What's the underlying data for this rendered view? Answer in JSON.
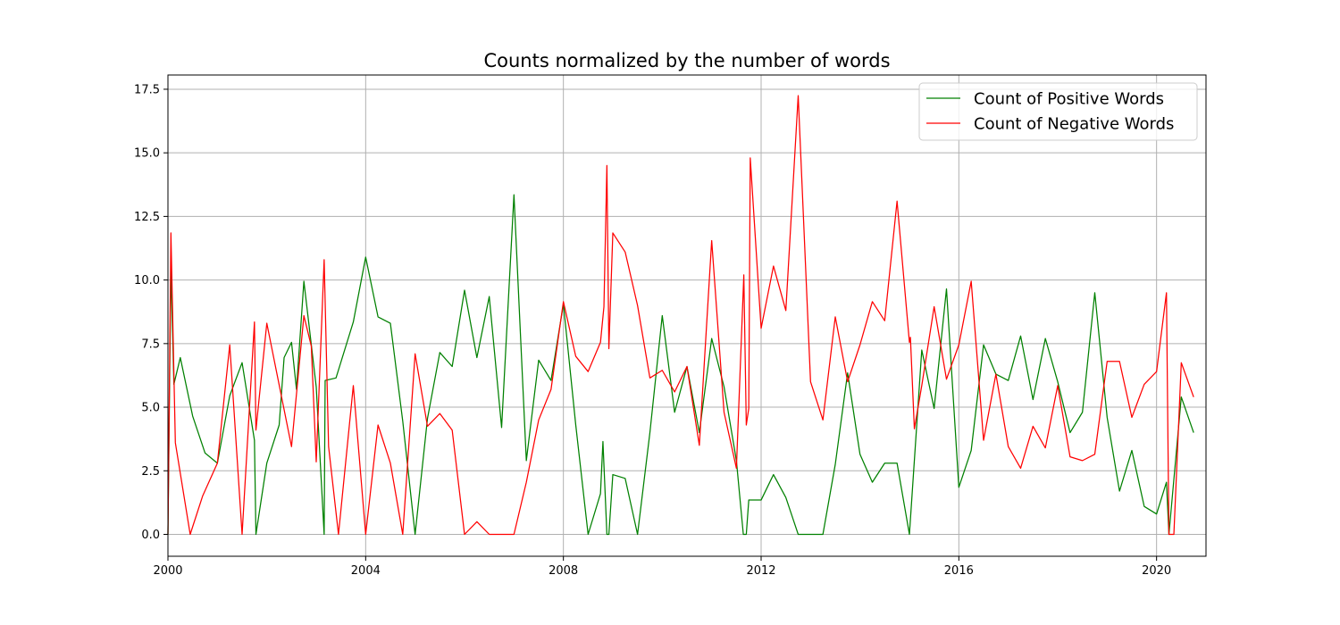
{
  "chart_data": {
    "type": "line",
    "title": "Counts normalized by the number of words",
    "xlabel": "",
    "ylabel": "",
    "xlim": [
      2000.0,
      2021.0
    ],
    "ylim": [
      -0.86,
      18.06
    ],
    "x_ticks": [
      2000,
      2004,
      2008,
      2012,
      2016,
      2020
    ],
    "x_tick_labels": [
      "2000",
      "2004",
      "2008",
      "2012",
      "2016",
      "2020"
    ],
    "y_ticks": [
      0.0,
      2.5,
      5.0,
      7.5,
      10.0,
      12.5,
      15.0,
      17.5
    ],
    "y_tick_labels": [
      "0.0",
      "2.5",
      "5.0",
      "7.5",
      "10.0",
      "12.5",
      "15.0",
      "17.5"
    ],
    "grid": true,
    "legend": "top-right",
    "series": [
      {
        "name": "Count of Positive Words",
        "color": "#008000",
        "points": [
          [
            2000.0,
            0.0
          ],
          [
            2000.06,
            10.55
          ],
          [
            2000.12,
            5.9
          ],
          [
            2000.25,
            6.95
          ],
          [
            2000.5,
            4.65
          ],
          [
            2000.75,
            3.2
          ],
          [
            2001.0,
            2.8
          ],
          [
            2001.25,
            5.45
          ],
          [
            2001.5,
            6.75
          ],
          [
            2001.75,
            3.7
          ],
          [
            2001.78,
            0.0
          ],
          [
            2002.0,
            2.8
          ],
          [
            2002.25,
            4.3
          ],
          [
            2002.35,
            6.95
          ],
          [
            2002.5,
            7.55
          ],
          [
            2002.6,
            5.7
          ],
          [
            2002.75,
            9.95
          ],
          [
            2003.0,
            5.8
          ],
          [
            2003.16,
            0.0
          ],
          [
            2003.18,
            6.05
          ],
          [
            2003.4,
            6.15
          ],
          [
            2003.75,
            8.35
          ],
          [
            2004.0,
            10.9
          ],
          [
            2004.25,
            8.55
          ],
          [
            2004.5,
            8.3
          ],
          [
            2004.75,
            4.45
          ],
          [
            2005.0,
            0.0
          ],
          [
            2005.25,
            4.55
          ],
          [
            2005.5,
            7.15
          ],
          [
            2005.75,
            6.6
          ],
          [
            2006.0,
            9.6
          ],
          [
            2006.25,
            6.95
          ],
          [
            2006.5,
            9.35
          ],
          [
            2006.75,
            4.2
          ],
          [
            2007.0,
            13.35
          ],
          [
            2007.25,
            2.9
          ],
          [
            2007.5,
            6.85
          ],
          [
            2007.75,
            6.05
          ],
          [
            2008.0,
            9.05
          ],
          [
            2008.25,
            4.3
          ],
          [
            2008.5,
            0.0
          ],
          [
            2008.75,
            1.6
          ],
          [
            2008.8,
            3.65
          ],
          [
            2008.88,
            0.0
          ],
          [
            2008.92,
            0.0
          ],
          [
            2009.0,
            2.35
          ],
          [
            2009.25,
            2.2
          ],
          [
            2009.5,
            0.0
          ],
          [
            2009.75,
            4.0
          ],
          [
            2010.0,
            8.6
          ],
          [
            2010.25,
            4.8
          ],
          [
            2010.5,
            6.6
          ],
          [
            2010.75,
            4.0
          ],
          [
            2011.0,
            7.7
          ],
          [
            2011.25,
            5.8
          ],
          [
            2011.5,
            2.9
          ],
          [
            2011.64,
            0.0
          ],
          [
            2011.7,
            0.0
          ],
          [
            2011.75,
            1.35
          ],
          [
            2012.0,
            1.35
          ],
          [
            2012.25,
            2.35
          ],
          [
            2012.5,
            1.45
          ],
          [
            2012.75,
            0.0
          ],
          [
            2013.0,
            0.0
          ],
          [
            2013.25,
            0.0
          ],
          [
            2013.5,
            2.75
          ],
          [
            2013.75,
            6.35
          ],
          [
            2014.0,
            3.15
          ],
          [
            2014.25,
            2.05
          ],
          [
            2014.5,
            2.8
          ],
          [
            2014.75,
            2.8
          ],
          [
            2015.0,
            0.0
          ],
          [
            2015.25,
            7.25
          ],
          [
            2015.5,
            4.95
          ],
          [
            2015.75,
            9.65
          ],
          [
            2016.0,
            1.85
          ],
          [
            2016.25,
            3.3
          ],
          [
            2016.5,
            7.45
          ],
          [
            2016.75,
            6.3
          ],
          [
            2017.0,
            6.05
          ],
          [
            2017.25,
            7.8
          ],
          [
            2017.5,
            5.3
          ],
          [
            2017.75,
            7.7
          ],
          [
            2018.0,
            6.0
          ],
          [
            2018.25,
            4.0
          ],
          [
            2018.5,
            4.8
          ],
          [
            2018.75,
            9.5
          ],
          [
            2019.0,
            4.6
          ],
          [
            2019.25,
            1.7
          ],
          [
            2019.5,
            3.3
          ],
          [
            2019.75,
            1.1
          ],
          [
            2020.0,
            0.8
          ],
          [
            2020.2,
            2.05
          ],
          [
            2020.25,
            0.0
          ],
          [
            2020.5,
            5.4
          ],
          [
            2020.75,
            4.0
          ]
        ]
      },
      {
        "name": "Count of Negative Words",
        "color": "#ff0000",
        "points": [
          [
            2000.0,
            0.0
          ],
          [
            2000.06,
            11.85
          ],
          [
            2000.15,
            3.6
          ],
          [
            2000.45,
            0.0
          ],
          [
            2000.7,
            1.5
          ],
          [
            2001.0,
            2.8
          ],
          [
            2001.25,
            7.45
          ],
          [
            2001.5,
            0.0
          ],
          [
            2001.75,
            8.35
          ],
          [
            2001.78,
            4.1
          ],
          [
            2002.0,
            8.3
          ],
          [
            2002.5,
            3.45
          ],
          [
            2002.75,
            8.6
          ],
          [
            2002.9,
            7.4
          ],
          [
            2003.0,
            2.85
          ],
          [
            2003.16,
            10.8
          ],
          [
            2003.25,
            3.45
          ],
          [
            2003.45,
            0.0
          ],
          [
            2003.75,
            5.85
          ],
          [
            2004.0,
            0.0
          ],
          [
            2004.25,
            4.3
          ],
          [
            2004.5,
            2.8
          ],
          [
            2004.75,
            0.0
          ],
          [
            2005.0,
            7.1
          ],
          [
            2005.25,
            4.25
          ],
          [
            2005.5,
            4.75
          ],
          [
            2005.75,
            4.1
          ],
          [
            2006.0,
            0.0
          ],
          [
            2006.25,
            0.5
          ],
          [
            2006.5,
            0.0
          ],
          [
            2006.75,
            0.0
          ],
          [
            2007.0,
            0.0
          ],
          [
            2007.25,
            2.05
          ],
          [
            2007.5,
            4.5
          ],
          [
            2007.75,
            5.7
          ],
          [
            2008.0,
            9.15
          ],
          [
            2008.25,
            7.0
          ],
          [
            2008.5,
            6.4
          ],
          [
            2008.75,
            7.55
          ],
          [
            2008.82,
            8.95
          ],
          [
            2008.88,
            14.5
          ],
          [
            2008.92,
            7.3
          ],
          [
            2009.0,
            11.85
          ],
          [
            2009.25,
            11.1
          ],
          [
            2009.5,
            9.0
          ],
          [
            2009.75,
            6.15
          ],
          [
            2010.0,
            6.45
          ],
          [
            2010.25,
            5.6
          ],
          [
            2010.5,
            6.6
          ],
          [
            2010.75,
            3.5
          ],
          [
            2011.0,
            11.55
          ],
          [
            2011.25,
            4.8
          ],
          [
            2011.5,
            2.6
          ],
          [
            2011.65,
            10.2
          ],
          [
            2011.7,
            4.3
          ],
          [
            2011.75,
            4.95
          ],
          [
            2011.78,
            14.8
          ],
          [
            2012.0,
            8.1
          ],
          [
            2012.25,
            10.55
          ],
          [
            2012.5,
            8.8
          ],
          [
            2012.75,
            17.25
          ],
          [
            2013.0,
            6.0
          ],
          [
            2013.25,
            4.5
          ],
          [
            2013.5,
            8.55
          ],
          [
            2013.75,
            6.0
          ],
          [
            2014.0,
            7.45
          ],
          [
            2014.25,
            9.15
          ],
          [
            2014.5,
            8.4
          ],
          [
            2014.75,
            13.1
          ],
          [
            2015.0,
            7.55
          ],
          [
            2015.02,
            7.75
          ],
          [
            2015.1,
            4.15
          ],
          [
            2015.25,
            5.85
          ],
          [
            2015.5,
            8.95
          ],
          [
            2015.75,
            6.1
          ],
          [
            2016.0,
            7.45
          ],
          [
            2016.25,
            9.95
          ],
          [
            2016.5,
            3.7
          ],
          [
            2016.75,
            6.3
          ],
          [
            2017.0,
            3.45
          ],
          [
            2017.25,
            2.6
          ],
          [
            2017.5,
            4.25
          ],
          [
            2017.75,
            3.4
          ],
          [
            2018.0,
            5.85
          ],
          [
            2018.25,
            3.05
          ],
          [
            2018.5,
            2.9
          ],
          [
            2018.75,
            3.15
          ],
          [
            2019.0,
            6.8
          ],
          [
            2019.25,
            6.8
          ],
          [
            2019.5,
            4.6
          ],
          [
            2019.75,
            5.9
          ],
          [
            2020.0,
            6.4
          ],
          [
            2020.2,
            9.5
          ],
          [
            2020.25,
            0.0
          ],
          [
            2020.35,
            0.0
          ],
          [
            2020.5,
            6.75
          ],
          [
            2020.75,
            5.4
          ]
        ]
      }
    ]
  }
}
